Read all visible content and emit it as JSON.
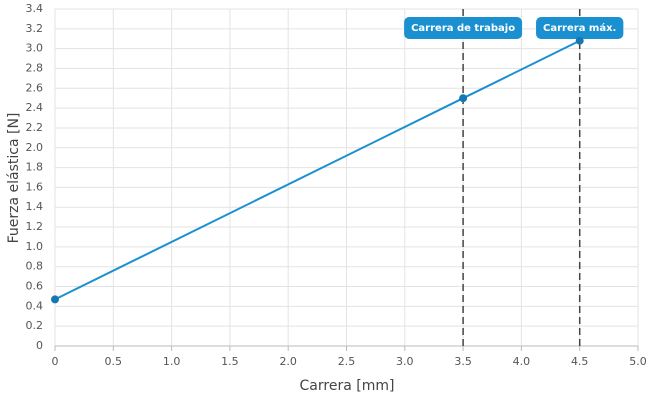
{
  "chart_data": {
    "type": "line",
    "x_label": "Carrera [mm]",
    "y_label": "Fuerza elástica [N]",
    "series": [
      {
        "name": "Fuerza",
        "color": "#1a90d0",
        "x": [
          0,
          3.5,
          4.5
        ],
        "values": [
          0.47,
          2.5,
          3.08
        ]
      }
    ],
    "xlim": [
      0,
      5
    ],
    "xticks": [
      0,
      0.5,
      {
        "value": 1,
        "label": "1.0"
      },
      1.5,
      {
        "value": 2,
        "label": "2.0"
      },
      2.5,
      {
        "value": 3,
        "label": "3.0"
      },
      3.5,
      {
        "value": 4,
        "label": "4.0"
      },
      4.5,
      {
        "value": 5,
        "label": "5.0"
      }
    ],
    "ylim": [
      0,
      3.4
    ],
    "yticks": [
      0,
      0.2,
      0.4,
      0.6,
      0.8,
      {
        "value": 1,
        "label": "1.0"
      },
      1.2,
      1.4,
      1.6,
      1.8,
      {
        "value": 2,
        "label": "2.0"
      },
      2.2,
      2.4,
      2.6,
      2.8,
      {
        "value": 3,
        "label": "3.0"
      },
      3.2,
      3.4
    ],
    "grid": true,
    "annotations": [
      {
        "x": 3.5,
        "label": "Carrera de trabajo"
      },
      {
        "x": 4.5,
        "label": "Carrera máx."
      }
    ]
  }
}
